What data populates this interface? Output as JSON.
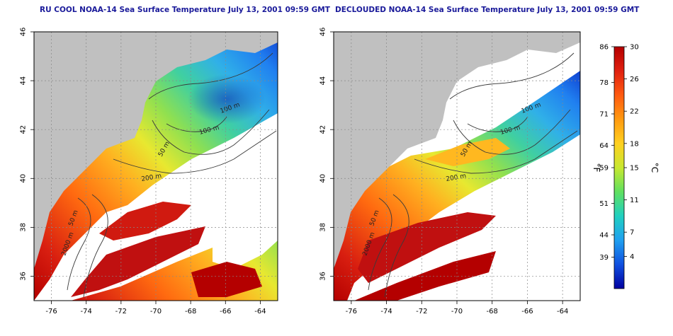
{
  "panels": [
    {
      "title": "RU COOL NOAA-14 Sea Surface Temperature July 13, 2001 09:59 GMT",
      "contour_labels": [
        "100 m",
        "100 m",
        "50 m",
        "200 m",
        "50 m",
        "2000 m"
      ]
    },
    {
      "title": "DECLOUDED NOAA-14 Sea Surface Temperature July 13, 2001 09:59 GMT",
      "contour_labels": [
        "100 m",
        "100 m",
        "50 m",
        "200 m",
        "50 m",
        "2000 m"
      ]
    }
  ],
  "axes": {
    "x_ticks": [
      "-76",
      "-74",
      "-72",
      "-70",
      "-68",
      "-66",
      "-64"
    ],
    "y_ticks": [
      "36",
      "38",
      "40",
      "42",
      "44",
      "46"
    ],
    "grid": "dotted"
  },
  "colorbar": {
    "fahrenheit_label": "°F",
    "celsius_label": "°C",
    "fahrenheit_ticks": [
      "86",
      "78",
      "71",
      "64",
      "59",
      "51",
      "44",
      "39"
    ],
    "celsius_ticks": [
      "30",
      "26",
      "22",
      "18",
      "15",
      "11",
      "7",
      "4"
    ],
    "colors": [
      "#b40000",
      "#e02010",
      "#ff5a10",
      "#ff9a10",
      "#ffd020",
      "#c8e830",
      "#60e060",
      "#20d0c0",
      "#20a0f0",
      "#1050e0",
      "#0000a0"
    ]
  },
  "colors": {
    "land": "#c0c0c0",
    "cloud": "#ffffff",
    "contour": "#3a3a3a",
    "title": "#1a1a9a"
  }
}
